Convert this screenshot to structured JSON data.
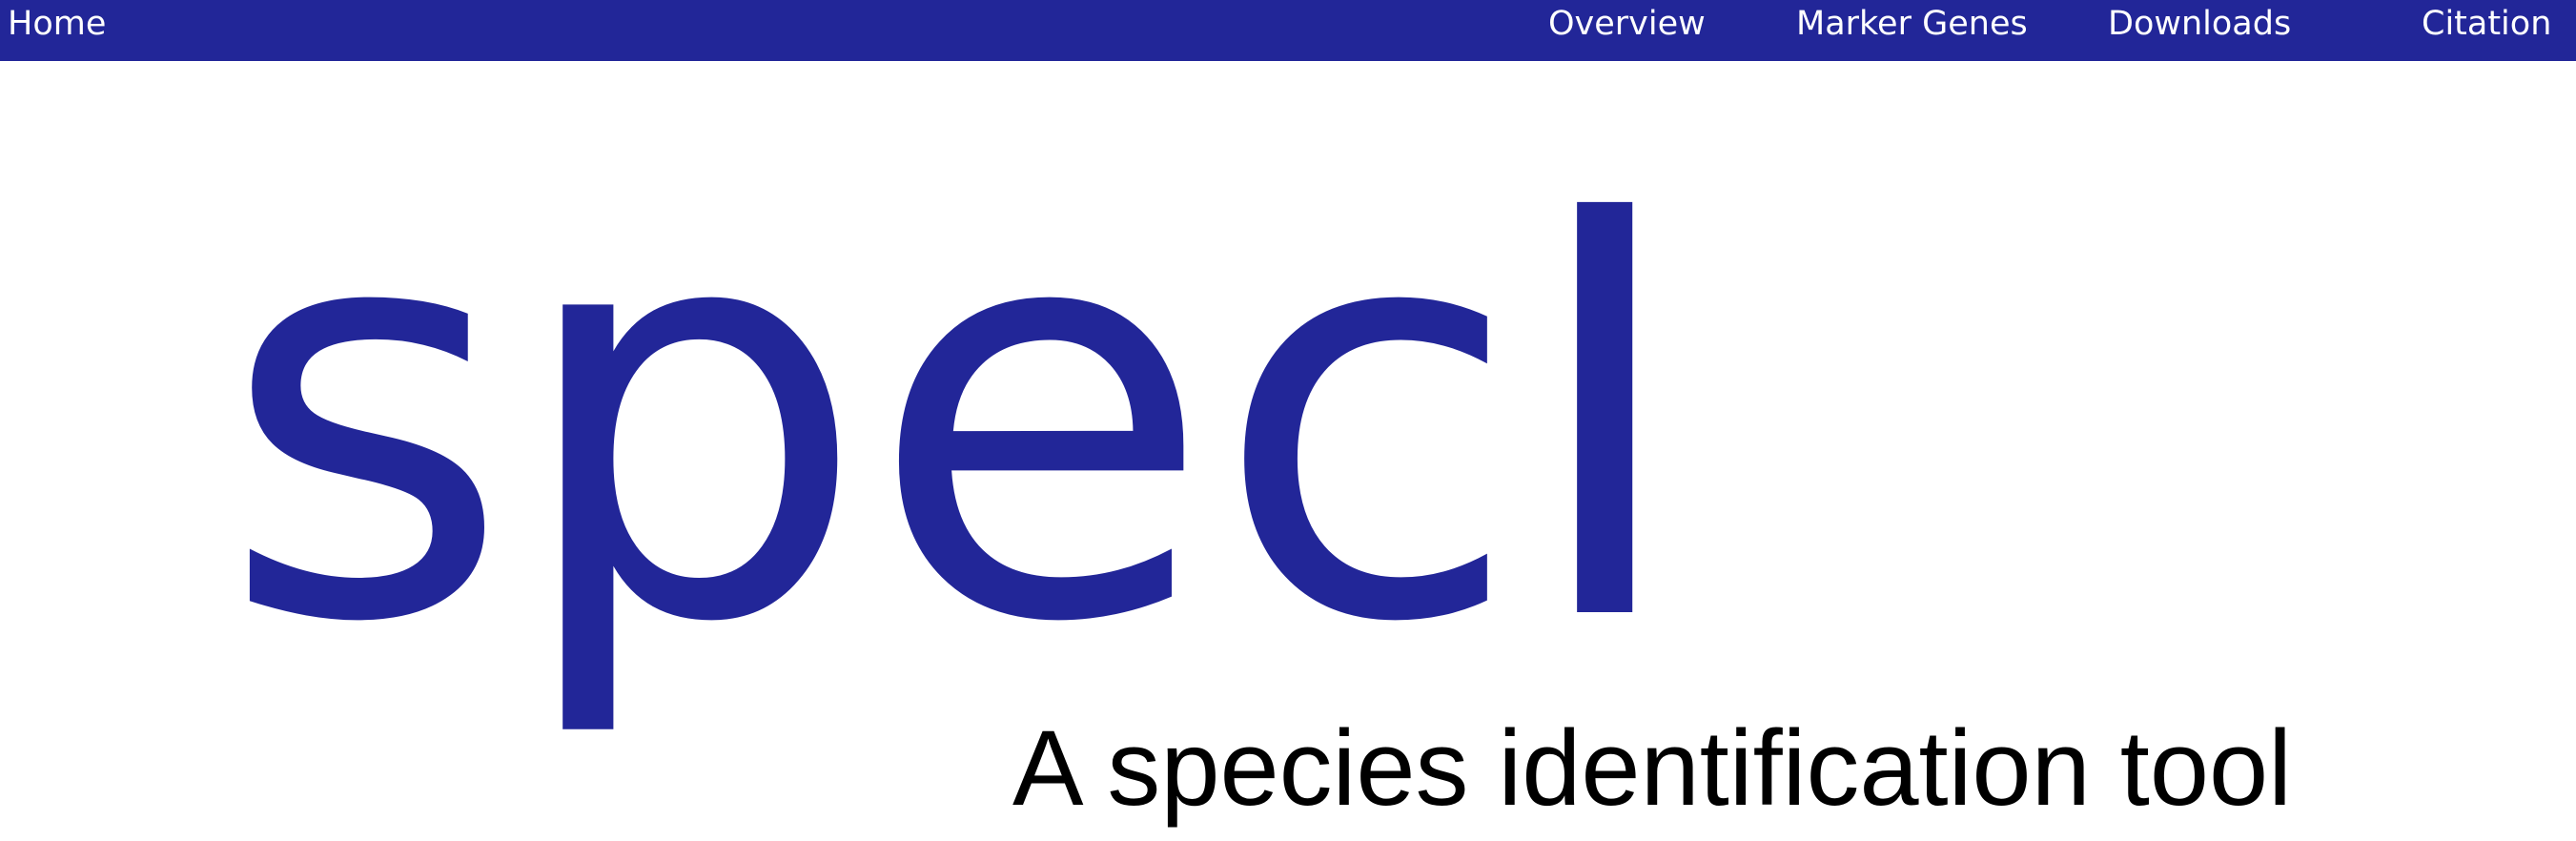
{
  "nav": {
    "home": "Home",
    "items": [
      "Overview",
      "Marker Genes",
      "Downloads",
      "Citation"
    ]
  },
  "logo": {
    "word": "specI",
    "tagline": "A species identification tool"
  },
  "colors": {
    "nav_background": "#222698",
    "nav_text": "#ffffff",
    "logo_word": "#222698",
    "logo_tagline": "#000000",
    "page_background": "#ffffff"
  }
}
